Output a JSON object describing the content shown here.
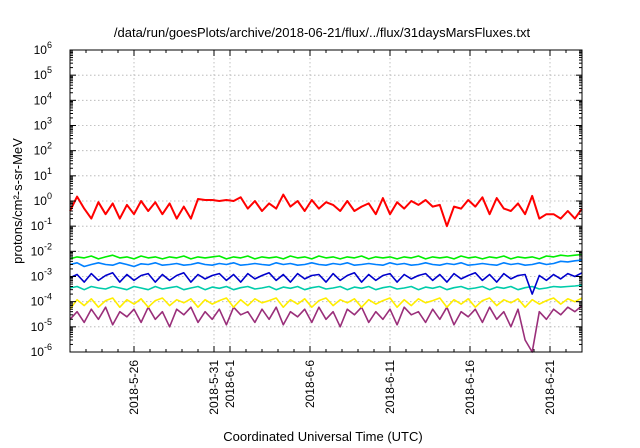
{
  "chart_data": {
    "type": "line",
    "title": "/data/run/goesPlots/archive/2018-06-21/flux/../flux/31daysMarsFluxes.txt",
    "xlabel": "Coordinated Universal Time (UTC)",
    "ylabel": "protons/cm²-s-sr-MeV",
    "y_scale": "log",
    "ylim": [
      1e-06,
      1000000.0
    ],
    "xlim": [
      "2018-05-22",
      "2018-06-23"
    ],
    "grid": true,
    "x_ticks": [
      "2018-5-26",
      "2018-5-31",
      "2018-6-1",
      "2018-6-6",
      "2018-6-11",
      "2018-6-16",
      "2018-6-21"
    ],
    "y_ticks": [
      "10^-6",
      "10^-5",
      "10^-4",
      "10^-3",
      "10^-2",
      "10^-1",
      "10^0",
      "10^1",
      "10^2",
      "10^3",
      "10^4",
      "10^5",
      "10^6"
    ],
    "series": [
      {
        "color": "#ff0000",
        "values": [
          0.4,
          1.5,
          0.5,
          0.2,
          0.9,
          0.3,
          0.8,
          0.2,
          0.7,
          0.3,
          1.0,
          0.4,
          0.9,
          0.3,
          0.8,
          0.2,
          0.6,
          0.2,
          1.2,
          1.1,
          1.1,
          1.0,
          1.1,
          1.0,
          1.4,
          0.5,
          1.0,
          0.4,
          0.8,
          0.5,
          1.8,
          0.6,
          1.0,
          0.4,
          1.1,
          0.5,
          0.9,
          0.7,
          0.4,
          1.0,
          0.4,
          0.6,
          0.8,
          0.3,
          1.3,
          0.3,
          0.9,
          0.5,
          1.0,
          0.7,
          1.1,
          0.6,
          0.7,
          0.1,
          0.6,
          0.5,
          1.1,
          0.6,
          1.4,
          0.3,
          1.3,
          0.5,
          0.4,
          0.8,
          0.3,
          1.6,
          0.2,
          0.3,
          0.3,
          0.2,
          0.4,
          0.2,
          0.5
        ]
      },
      {
        "color": "#00ee00",
        "values": [
          0.005,
          0.006,
          0.0055,
          0.0065,
          0.005,
          0.006,
          0.007,
          0.0055,
          0.006,
          0.005,
          0.0065,
          0.0055,
          0.006,
          0.005,
          0.006,
          0.0055,
          0.0065,
          0.005,
          0.006,
          0.0055,
          0.006,
          0.0065,
          0.005,
          0.006,
          0.0055,
          0.0065,
          0.005,
          0.006,
          0.0055,
          0.006,
          0.005,
          0.0065,
          0.0055,
          0.006,
          0.005,
          0.0065,
          0.0055,
          0.006,
          0.005,
          0.006,
          0.0055,
          0.0065,
          0.005,
          0.006,
          0.0055,
          0.006,
          0.005,
          0.006,
          0.0055,
          0.0065,
          0.005,
          0.006,
          0.0055,
          0.006,
          0.005,
          0.0065,
          0.0055,
          0.006,
          0.005,
          0.006,
          0.0055,
          0.0065,
          0.005,
          0.006,
          0.0055,
          0.006,
          0.005,
          0.0065,
          0.006,
          0.007,
          0.0065,
          0.007,
          0.0075
        ]
      },
      {
        "color": "#0080ff",
        "values": [
          0.003,
          0.0035,
          0.0025,
          0.003,
          0.0035,
          0.003,
          0.0028,
          0.0035,
          0.003,
          0.0025,
          0.0032,
          0.003,
          0.0035,
          0.0028,
          0.003,
          0.0033,
          0.0028,
          0.003,
          0.0035,
          0.003,
          0.0028,
          0.0033,
          0.003,
          0.0035,
          0.0028,
          0.003,
          0.0033,
          0.003,
          0.0028,
          0.0035,
          0.003,
          0.0033,
          0.0028,
          0.003,
          0.0035,
          0.003,
          0.0028,
          0.0033,
          0.003,
          0.0035,
          0.0028,
          0.003,
          0.0033,
          0.003,
          0.0028,
          0.0035,
          0.003,
          0.0033,
          0.0028,
          0.003,
          0.0035,
          0.003,
          0.0028,
          0.0033,
          0.003,
          0.0035,
          0.0028,
          0.003,
          0.0033,
          0.003,
          0.0028,
          0.0035,
          0.003,
          0.0033,
          0.0028,
          0.003,
          0.0035,
          0.003,
          0.0033,
          0.004,
          0.0038,
          0.0042,
          0.0045
        ]
      },
      {
        "color": "#0000cc",
        "values": [
          0.0009,
          0.0012,
          0.0006,
          0.0013,
          0.0007,
          0.0011,
          0.0014,
          0.0006,
          0.0012,
          0.0007,
          0.0011,
          0.0013,
          0.0006,
          0.0012,
          0.0007,
          0.0011,
          0.0014,
          0.0006,
          0.0012,
          0.0008,
          0.0011,
          0.0013,
          0.0007,
          0.0012,
          0.0006,
          0.0013,
          0.0008,
          0.0011,
          0.0014,
          0.0007,
          0.0012,
          0.0006,
          0.0013,
          0.0008,
          0.0011,
          0.0012,
          0.0006,
          0.0013,
          0.0007,
          0.0011,
          0.0014,
          0.0006,
          0.0012,
          0.0007,
          0.0011,
          0.0013,
          0.0006,
          0.0012,
          0.0008,
          0.0011,
          0.0013,
          0.0007,
          0.0012,
          0.0006,
          0.0013,
          0.0008,
          0.0011,
          0.0014,
          0.0007,
          0.0012,
          0.0006,
          0.0013,
          0.0008,
          0.0011,
          0.0012,
          0.0002,
          0.0011,
          0.0007,
          0.0012,
          0.0008,
          0.0013,
          0.001,
          0.0014
        ]
      },
      {
        "color": "#00ccaa",
        "values": [
          0.00035,
          0.0004,
          0.0003,
          0.0004,
          0.00035,
          0.00032,
          0.0004,
          0.00035,
          0.0003,
          0.0004,
          0.00035,
          0.0003,
          0.0004,
          0.00032,
          0.00036,
          0.0004,
          0.0003,
          0.00035,
          0.0004,
          0.0003,
          0.00038,
          0.00034,
          0.0004,
          0.0003,
          0.00036,
          0.0004,
          0.00032,
          0.00035,
          0.0004,
          0.0003,
          0.00038,
          0.00034,
          0.0004,
          0.0003,
          0.00036,
          0.0004,
          0.00032,
          0.00035,
          0.0004,
          0.0003,
          0.00038,
          0.00034,
          0.0004,
          0.0003,
          0.00036,
          0.0004,
          0.00032,
          0.00035,
          0.0004,
          0.0003,
          0.00038,
          0.00034,
          0.0004,
          0.0003,
          0.00036,
          0.0004,
          0.00032,
          0.00035,
          0.0004,
          0.0003,
          0.00038,
          0.00034,
          0.0004,
          0.0003,
          0.00036,
          0.0004,
          0.00032,
          0.00035,
          0.0004,
          0.00038,
          0.0004,
          0.00042,
          0.00045
        ]
      },
      {
        "color": "#ffee00",
        "values": [
          5e-05,
          0.00012,
          7e-05,
          0.00013,
          6e-05,
          0.00011,
          0.00014,
          6e-05,
          0.00012,
          8e-05,
          0.00013,
          6e-05,
          0.00011,
          0.00014,
          7e-05,
          0.00012,
          9e-05,
          0.00013,
          6e-05,
          0.00012,
          8e-05,
          0.00011,
          0.00014,
          6e-05,
          0.00012,
          7e-05,
          0.00013,
          9e-05,
          0.00011,
          0.00014,
          6e-05,
          0.00012,
          8e-05,
          0.00013,
          6e-05,
          0.00011,
          0.00014,
          7e-05,
          0.00012,
          9e-05,
          0.00013,
          6e-05,
          0.00012,
          8e-05,
          0.00011,
          0.00014,
          6e-05,
          0.00012,
          7e-05,
          0.00013,
          9e-05,
          0.00011,
          0.00014,
          6e-05,
          0.00012,
          8e-05,
          0.00013,
          6e-05,
          0.00011,
          0.00014,
          7e-05,
          0.00012,
          9e-05,
          0.00013,
          6e-05,
          0.00012,
          8e-05,
          0.00011,
          0.00014,
          8e-05,
          0.00013,
          0.0001,
          0.00014
        ]
      },
      {
        "color": "#9a2f7a",
        "values": [
          2e-05,
          4e-05,
          1.5e-05,
          5e-05,
          2e-05,
          6e-05,
          1.2e-05,
          4e-05,
          2.5e-05,
          5e-05,
          1.5e-05,
          6e-05,
          2e-05,
          4e-05,
          1e-05,
          5e-05,
          3e-05,
          6e-05,
          1.5e-05,
          4e-05,
          2e-05,
          5e-05,
          1.2e-05,
          6e-05,
          3e-05,
          4e-05,
          1.5e-05,
          5e-05,
          2e-05,
          6e-05,
          1.2e-05,
          4e-05,
          2.5e-05,
          5e-05,
          1.5e-05,
          6e-05,
          2e-05,
          4e-05,
          1e-05,
          5e-05,
          3e-05,
          6e-05,
          1.5e-05,
          4e-05,
          2e-05,
          5e-05,
          1.2e-05,
          6e-05,
          3e-05,
          4e-05,
          1.5e-05,
          5e-05,
          2e-05,
          6e-05,
          1.2e-05,
          4e-05,
          2.5e-05,
          5e-05,
          1.5e-05,
          6e-05,
          2e-05,
          4e-05,
          1e-05,
          5e-05,
          3e-06,
          9e-07,
          4e-05,
          2e-05,
          5e-05,
          3e-05,
          6e-05,
          4e-05,
          7e-05
        ]
      }
    ]
  }
}
